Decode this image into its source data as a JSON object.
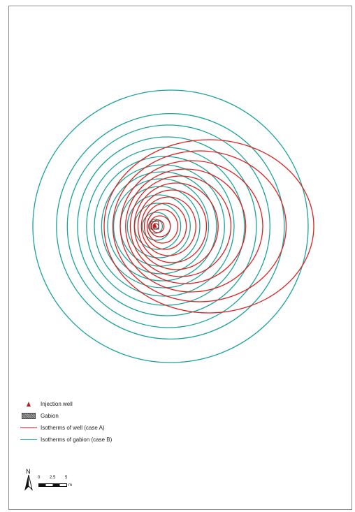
{
  "legend": {
    "injection_well": "Injection well",
    "gabion": "Gabion",
    "isotherms_well": "Isotherms of well (case A)",
    "isotherms_gabion": "Isotherms of gabion (case B)"
  },
  "north_label": "N",
  "scale": {
    "ticks": [
      "0",
      "2.5",
      "5"
    ],
    "unit": "m"
  },
  "colors": {
    "well_isotherm": "#e02020",
    "gabion_isotherm": "#1aa39a",
    "well_marker": "#b22222"
  },
  "icons": [
    "injection-well-triangle-icon",
    "gabion-pattern-icon",
    "north-arrow-icon"
  ]
}
